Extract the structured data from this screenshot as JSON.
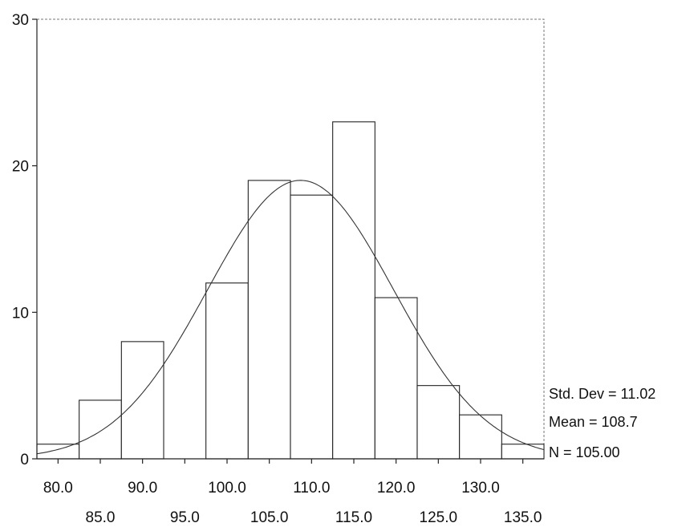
{
  "chart_data": {
    "type": "bar",
    "subtype": "histogram",
    "title": "",
    "xlabel": "",
    "ylabel": "",
    "bin_width": 5,
    "bin_centers": [
      80,
      85,
      90,
      95,
      100,
      105,
      110,
      115,
      120,
      125,
      130,
      135
    ],
    "counts": [
      1,
      4,
      8,
      0,
      12,
      19,
      18,
      23,
      11,
      5,
      3,
      1
    ],
    "x_ticks_row1": [
      "80.0",
      "90.0",
      "100.0",
      "110.0",
      "120.0",
      "130.0"
    ],
    "x_ticks_row2": [
      "85.0",
      "95.0",
      "105.0",
      "115.0",
      "125.0",
      "135.0"
    ],
    "y_ticks": [
      "0",
      "10",
      "20",
      "30"
    ],
    "ylim": [
      0,
      30
    ],
    "xlim": [
      77.5,
      137.5
    ],
    "grid": false,
    "normal_curve": {
      "mean": 108.7,
      "std": 11.02,
      "n": 105
    },
    "stats": {
      "std_dev": "Std. Dev = 11.02",
      "mean": "Mean = 108.7",
      "n": "N = 105.00"
    },
    "stats_placement": "right",
    "colors": {
      "bars": "#ffffff",
      "outline": "#222222",
      "curve": "#333333"
    }
  }
}
